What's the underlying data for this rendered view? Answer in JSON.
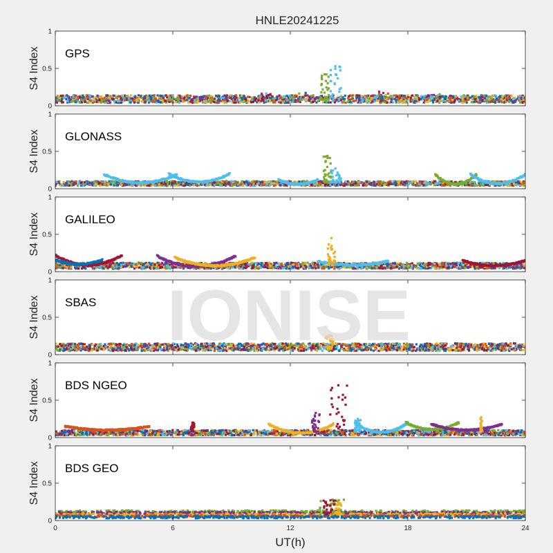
{
  "figure": {
    "title": "HNLE20241225",
    "watermark": "IONISE",
    "xlabel": "UT(h)"
  },
  "chart_data": [
    {
      "type": "scatter",
      "panel": "GPS",
      "ylabel": "S4 Index",
      "xlim": [
        0,
        24
      ],
      "ylim": [
        0,
        1
      ],
      "xticks": [
        0,
        6,
        12,
        18,
        24
      ],
      "yticks": [
        0,
        0.5,
        1
      ],
      "grid": false,
      "baseline": {
        "from": 0.04,
        "to": 0.14
      },
      "humps": [
        [
          10.8,
          0.2
        ],
        [
          12.6,
          0.2
        ],
        [
          16.7,
          0.23
        ],
        [
          19.5,
          0.18
        ]
      ],
      "spikes": [
        {
          "x_range": [
            13.5,
            14.0
          ],
          "max": 0.42,
          "color": "#77ac30"
        },
        {
          "x_range": [
            14.0,
            14.6
          ],
          "max": 0.53,
          "color": "#4dbeee"
        }
      ]
    },
    {
      "type": "scatter",
      "panel": "GLONASS",
      "ylabel": "S4 Index",
      "xlim": [
        0,
        24
      ],
      "ylim": [
        0,
        1
      ],
      "xticks": [
        0,
        6,
        12,
        18,
        24
      ],
      "yticks": [
        0,
        0.5,
        1
      ],
      "grid": false,
      "baseline": {
        "from": 0.04,
        "to": 0.1
      },
      "arcs": [
        {
          "x0": 2.5,
          "x1": 6.2,
          "edge": 0.19,
          "mid": 0.08,
          "color": "#4dbeee"
        },
        {
          "x0": 5.8,
          "x1": 8.9,
          "edge": 0.2,
          "mid": 0.09,
          "color": "#4dbeee"
        },
        {
          "x0": 11.4,
          "x1": 13.4,
          "edge": 0.12,
          "mid": 0.06,
          "color": "#4dbeee"
        },
        {
          "x0": 19.4,
          "x1": 21.5,
          "edge": 0.19,
          "mid": 0.06,
          "color": "#77ac30"
        },
        {
          "x0": 21.2,
          "x1": 24,
          "edge": 0.19,
          "mid": 0.07,
          "color": "#4dbeee"
        }
      ],
      "spikes": [
        {
          "x_range": [
            13.7,
            14.1
          ],
          "max": 0.44,
          "color": "#77ac30"
        },
        {
          "x_range": [
            14.0,
            14.6
          ],
          "max": 0.27,
          "color": "#4dbeee"
        }
      ]
    },
    {
      "type": "scatter",
      "panel": "GALILEO",
      "ylabel": "S4 Index",
      "xlim": [
        0,
        24
      ],
      "ylim": [
        0,
        1
      ],
      "xticks": [
        0,
        6,
        12,
        18,
        24
      ],
      "yticks": [
        0,
        0.5,
        1
      ],
      "grid": false,
      "baseline": {
        "from": 0.04,
        "to": 0.12
      },
      "arcs": [
        {
          "x0": 0,
          "x1": 3.4,
          "edge": 0.22,
          "mid": 0.09,
          "color": "#a2142f"
        },
        {
          "x0": 0,
          "x1": 2.4,
          "edge": 0.16,
          "mid": 0.1,
          "color": "#0072bd"
        },
        {
          "x0": 5.2,
          "x1": 9.2,
          "edge": 0.21,
          "mid": 0.07,
          "color": "#7e2f8e"
        },
        {
          "x0": 6.1,
          "x1": 10.2,
          "edge": 0.19,
          "mid": 0.08,
          "color": "#edb120"
        },
        {
          "x0": 13.4,
          "x1": 17.0,
          "edge": 0.14,
          "mid": 0.09,
          "color": "#4dbeee"
        },
        {
          "x0": 20.8,
          "x1": 24,
          "edge": 0.15,
          "mid": 0.08,
          "color": "#a2142f"
        }
      ],
      "spikes": [
        {
          "x_range": [
            13.9,
            14.3
          ],
          "max": 0.45,
          "color": "#edb120"
        }
      ]
    },
    {
      "type": "scatter",
      "panel": "SBAS",
      "ylabel": "S4 Index",
      "xlim": [
        0,
        24
      ],
      "ylim": [
        0,
        1
      ],
      "xticks": [
        0,
        6,
        12,
        18,
        24
      ],
      "yticks": [
        0,
        0.5,
        1
      ],
      "grid": false,
      "baseline": {
        "from": 0.05,
        "to": 0.15
      },
      "spikes": [
        {
          "x_range": [
            13.8,
            14.2
          ],
          "max": 0.26,
          "color": "#edb120"
        }
      ]
    },
    {
      "type": "scatter",
      "panel": "BDS NGEO",
      "ylabel": "S4 Index",
      "xlim": [
        0,
        24
      ],
      "ylim": [
        0,
        1
      ],
      "xticks": [
        0,
        6,
        12,
        18,
        24
      ],
      "yticks": [
        0,
        0.5,
        1
      ],
      "grid": false,
      "baseline": {
        "from": 0.03,
        "to": 0.1
      },
      "arcs": [
        {
          "x0": 0.5,
          "x1": 4.8,
          "edge": 0.15,
          "mid": 0.1,
          "color": "#d95319"
        },
        {
          "x0": 10.9,
          "x1": 14.2,
          "edge": 0.18,
          "mid": 0.06,
          "color": "#edb120"
        },
        {
          "x0": 15.3,
          "x1": 18.0,
          "edge": 0.2,
          "mid": 0.07,
          "color": "#4dbeee"
        },
        {
          "x0": 17.9,
          "x1": 20.6,
          "edge": 0.2,
          "mid": 0.11,
          "color": "#77ac30"
        },
        {
          "x0": 19.2,
          "x1": 22.8,
          "edge": 0.18,
          "mid": 0.1,
          "color": "#7e2f8e"
        }
      ],
      "spikes": [
        {
          "x_range": [
            13.1,
            13.5
          ],
          "max": 0.33,
          "color": "#7e2f8e"
        },
        {
          "x_range": [
            14.0,
            14.9
          ],
          "max": 0.7,
          "color": "#a2142f"
        },
        {
          "x_range": [
            15.3,
            15.6
          ],
          "max": 0.25,
          "color": "#4dbeee"
        },
        {
          "x_range": [
            6.9,
            7.1
          ],
          "max": 0.2,
          "color": "#a2142f"
        },
        {
          "x_range": [
            21.7,
            21.8
          ],
          "max": 0.27,
          "color": "#edb120"
        }
      ]
    },
    {
      "type": "scatter",
      "panel": "BDS GEO",
      "ylabel": "S4 Index",
      "xlim": [
        0,
        24
      ],
      "ylim": [
        0,
        1
      ],
      "xticks": [
        0,
        6,
        12,
        18,
        24
      ],
      "yticks": [
        0,
        0.5,
        1
      ],
      "grid": false,
      "bands": [
        {
          "y": 0.12,
          "color": "#77ac30"
        },
        {
          "y": 0.1,
          "color": "#7e2f8e"
        },
        {
          "y": 0.08,
          "color": "#edb120"
        },
        {
          "y": 0.06,
          "color": "#d95319"
        },
        {
          "y": 0.045,
          "color": "#0072bd"
        }
      ],
      "spikes": [
        {
          "x_range": [
            13.5,
            14.8
          ],
          "max": 0.28,
          "color": "#77ac30"
        },
        {
          "x_range": [
            13.7,
            14.4
          ],
          "max": 0.27,
          "color": "#a2142f"
        },
        {
          "x_range": [
            14.3,
            14.6
          ],
          "max": 0.24,
          "color": "#edb120"
        }
      ]
    }
  ],
  "colors": {
    "series": [
      "#0072bd",
      "#d95319",
      "#edb120",
      "#7e2f8e",
      "#77ac30",
      "#4dbeee",
      "#a2142f"
    ],
    "figure_background": "#f0f0f0",
    "axes_background": "#ffffff",
    "watermark": "#dcdcdc"
  }
}
